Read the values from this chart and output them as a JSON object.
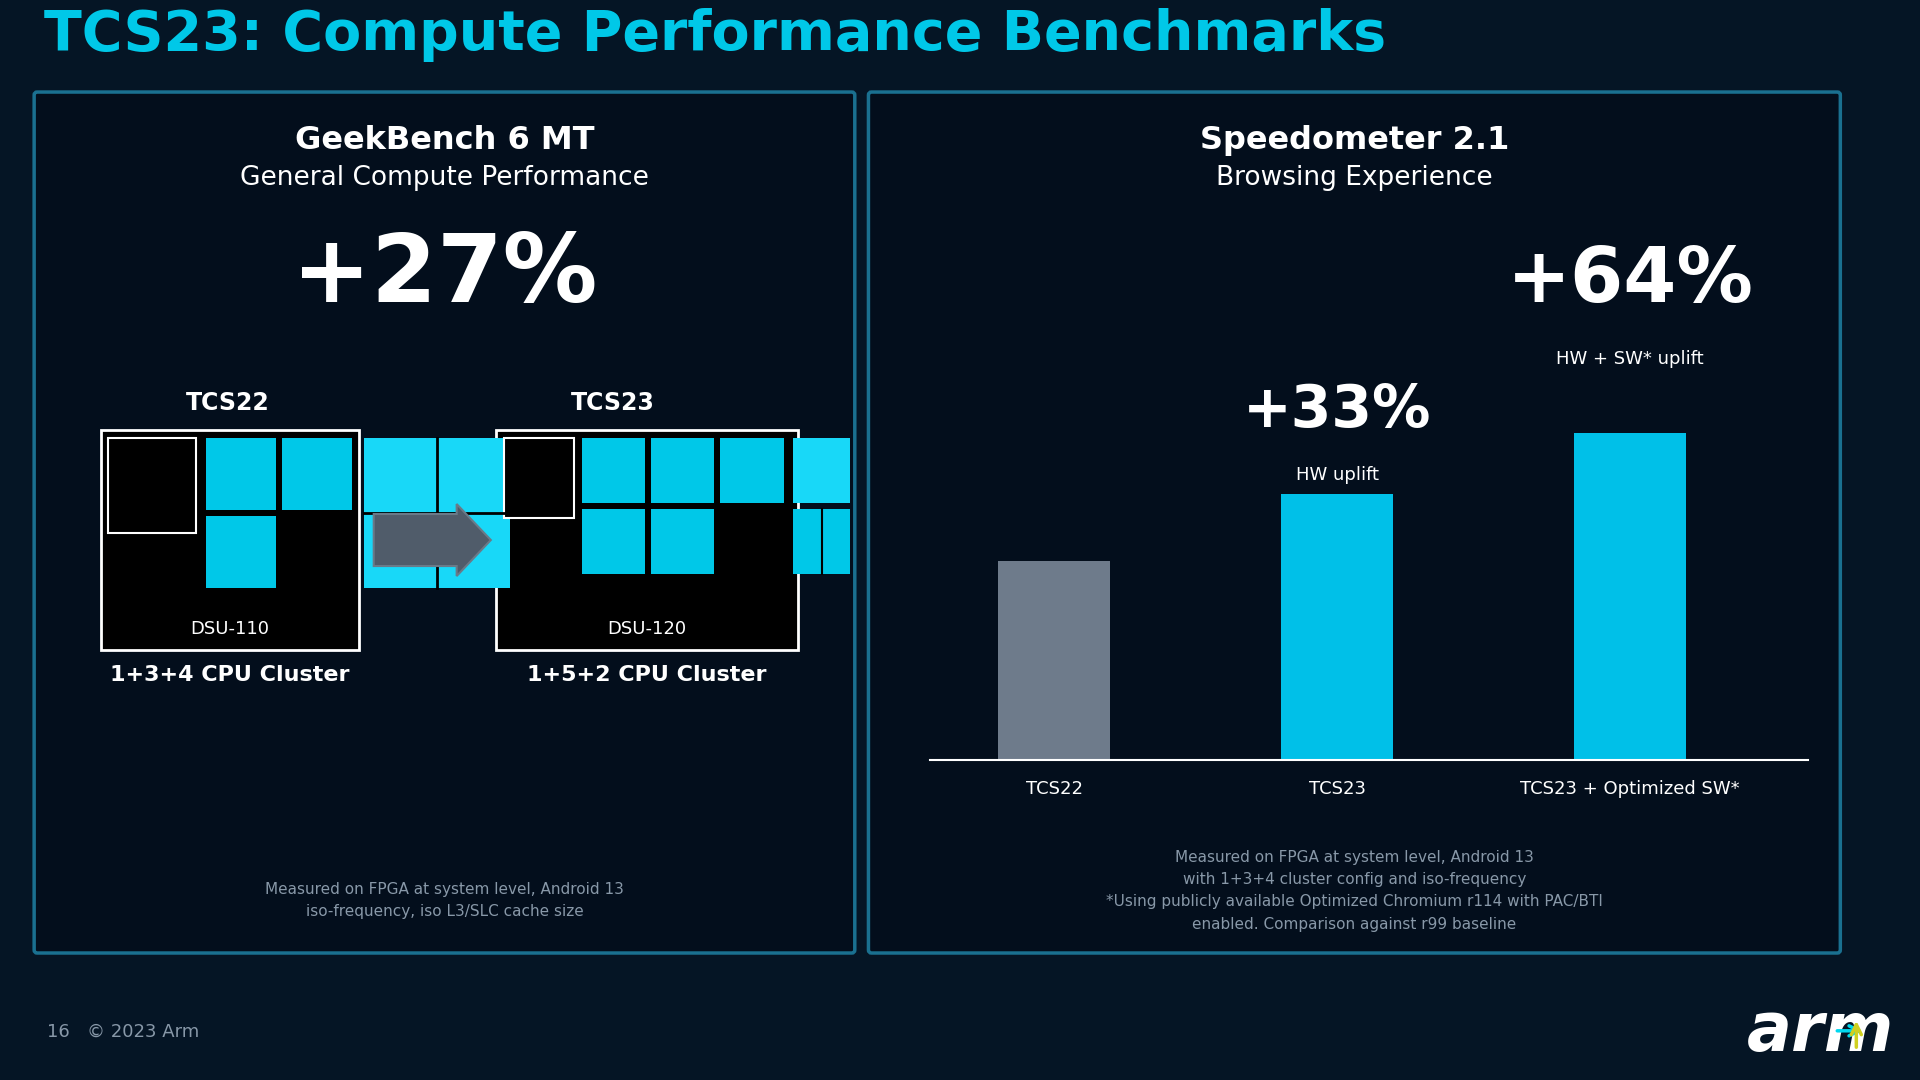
{
  "title": "TCS23: Compute Performance Benchmarks",
  "title_color": "#00C8E8",
  "bg_color": "#051525",
  "panel_bg": "#030e1c",
  "panel_border": "#1a7090",
  "left_panel": {
    "title1": "GeekBench 6 MT",
    "title2": "General Compute Performance",
    "big_percent": "+27%",
    "tcs22_label": "TCS22",
    "tcs23_label": "TCS23",
    "dsu110_label": "DSU-110",
    "dsu120_label": "DSU-120",
    "cluster22": "1+3+4 CPU Cluster",
    "cluster23": "1+5+2 CPU Cluster",
    "footnote": "Measured on FPGA at system level, Android 13\niso-frequency, iso L3/SLC cache size"
  },
  "right_panel": {
    "title1": "Speedometer 2.1",
    "title2": "Browsing Experience",
    "pct33": "+33%",
    "pct33_sub": "HW uplift",
    "pct64": "+64%",
    "pct64_sub": "HW + SW* uplift",
    "bar_labels": [
      "TCS22",
      "TCS23",
      "TCS23 + Optimized SW*"
    ],
    "bar_values": [
      75,
      100,
      123
    ],
    "bar_colors": [
      "#6e7b8b",
      "#00c0e8",
      "#00c0e8"
    ],
    "footnote": "Measured on FPGA at system level, Android 13\nwith 1+3+4 cluster config and iso-frequency\n*Using publicly available Optimized Chromium r114 with PAC/BTI\nenabled. Comparison against r99 baseline"
  },
  "footer": "16   © 2023 Arm",
  "cyan": "#00c8e8",
  "cyan_bright": "#18d8f8",
  "white": "#ffffff",
  "gray": "#8898a8",
  "dark_box": "#000000"
}
